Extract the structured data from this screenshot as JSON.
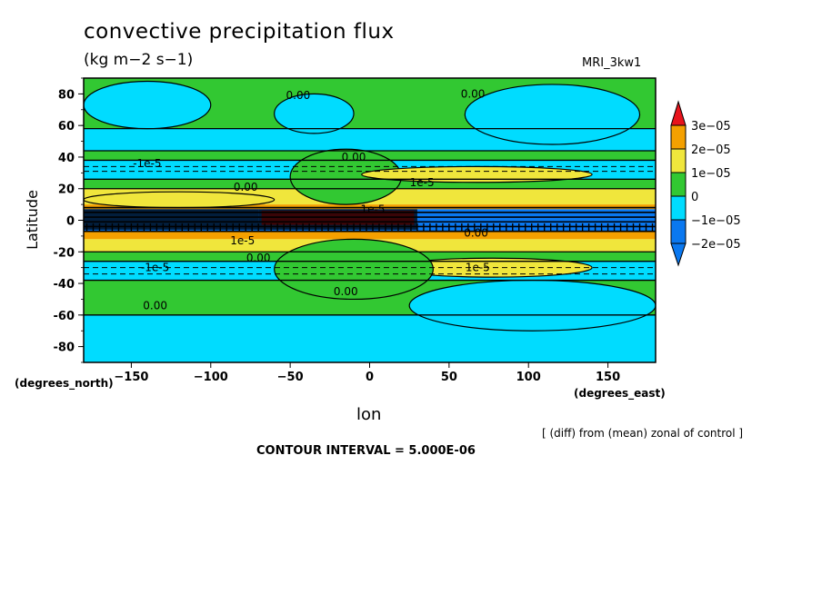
{
  "chart_data": {
    "type": "heatmap",
    "title": "convective precipitation flux",
    "units": "(kg m−2 s−1)",
    "model": "MRI_3kw1",
    "xlabel": "lon",
    "ylabel": "Latitude",
    "x_axis_note": "(degrees_east)",
    "y_axis_note": "(degrees_north)",
    "xlim": [
      -180,
      180
    ],
    "ylim": [
      -90,
      90
    ],
    "xticks": [
      -150,
      -100,
      -50,
      0,
      50,
      100,
      150
    ],
    "yticks": [
      80,
      60,
      40,
      20,
      0,
      -20,
      -40,
      -60,
      -80
    ],
    "description_note": "[ (diff) from (mean) zonal of control ]",
    "contour_interval": "CONTOUR INTERVAL = 5.000E-06",
    "colorbar": {
      "labels": [
        "3e−05",
        "2e−05",
        "1e−05",
        "0",
        "−1e−05",
        "−2e−05"
      ],
      "colors": {
        "red": "#e8141c",
        "orange": "#f4a000",
        "yellow": "#f0e63c",
        "green": "#32c832",
        "cyan": "#00dcff",
        "blue": "#0a78f0",
        "black": "#000000"
      }
    },
    "lat_bands": [
      {
        "lat_from": 90,
        "lat_to": 58,
        "value_class": "green"
      },
      {
        "lat_from": 58,
        "lat_to": 44,
        "value_class": "cyan"
      },
      {
        "lat_from": 44,
        "lat_to": 38,
        "value_class": "green"
      },
      {
        "lat_from": 38,
        "lat_to": 26,
        "value_class": "cyan"
      },
      {
        "lat_from": 26,
        "lat_to": 20,
        "value_class": "green"
      },
      {
        "lat_from": 20,
        "lat_to": 10,
        "value_class": "yellow"
      },
      {
        "lat_from": 10,
        "lat_to": 7,
        "value_class": "orange"
      },
      {
        "lat_from": 7,
        "lat_to": -7,
        "value_class": "blue"
      },
      {
        "lat_from": -7,
        "lat_to": -12,
        "value_class": "orange"
      },
      {
        "lat_from": -12,
        "lat_to": -20,
        "value_class": "yellow"
      },
      {
        "lat_from": -20,
        "lat_to": -26,
        "value_class": "green"
      },
      {
        "lat_from": -26,
        "lat_to": -38,
        "value_class": "cyan"
      },
      {
        "lat_from": -38,
        "lat_to": -60,
        "value_class": "green"
      },
      {
        "lat_from": -60,
        "lat_to": -90,
        "value_class": "cyan"
      }
    ],
    "regions": [
      {
        "name": "north-cyan-left",
        "value_class": "cyan",
        "lon": [
          -180,
          -100
        ],
        "lat": [
          88,
          58
        ]
      },
      {
        "name": "north-cyan-mid",
        "value_class": "cyan",
        "lon": [
          -60,
          -10
        ],
        "lat": [
          80,
          55
        ]
      },
      {
        "name": "north-cyan-right",
        "value_class": "cyan",
        "lon": [
          60,
          170
        ],
        "lat": [
          86,
          48
        ]
      },
      {
        "name": "central-green-north",
        "value_class": "green",
        "lon": [
          -50,
          20
        ],
        "lat": [
          45,
          10
        ]
      },
      {
        "name": "ne-yellow-band",
        "value_class": "yellow",
        "lon": [
          -5,
          140
        ],
        "lat": [
          34,
          24
        ]
      },
      {
        "name": "nw-yellow-band",
        "value_class": "yellow",
        "lon": [
          -180,
          -60
        ],
        "lat": [
          18,
          8
        ]
      },
      {
        "name": "equatorial-black-west",
        "value_class": "black",
        "lon": [
          -180,
          -70
        ],
        "lat": [
          7,
          -6
        ]
      },
      {
        "name": "equatorial-red",
        "value_class": "red",
        "lon": [
          -68,
          28
        ],
        "lat": [
          6,
          -3
        ]
      },
      {
        "name": "equatorial-black-mid",
        "value_class": "black",
        "lon": [
          -70,
          30
        ],
        "lat": [
          7,
          -6
        ]
      },
      {
        "name": "se-yellow-band",
        "value_class": "yellow",
        "lon": [
          15,
          140
        ],
        "lat": [
          -24,
          -36
        ]
      },
      {
        "name": "central-green-south",
        "value_class": "green",
        "lon": [
          -60,
          40
        ],
        "lat": [
          -12,
          -50
        ]
      },
      {
        "name": "south-cyan-right",
        "value_class": "cyan",
        "lon": [
          25,
          180
        ],
        "lat": [
          -38,
          -70
        ]
      }
    ],
    "contour_labels": [
      {
        "text": "0.00",
        "lon": -45,
        "lat": 79
      },
      {
        "text": "0.00",
        "lon": 65,
        "lat": 80
      },
      {
        "text": "0.00",
        "lon": -10,
        "lat": 40
      },
      {
        "text": "0.00",
        "lon": -78,
        "lat": 21
      },
      {
        "text": "0.00",
        "lon": -70,
        "lat": -24
      },
      {
        "text": "0.00",
        "lon": -15,
        "lat": -45
      },
      {
        "text": "0.00",
        "lon": -135,
        "lat": -54
      },
      {
        "text": "0.00",
        "lon": 67,
        "lat": -8
      },
      {
        "text": "-1e-5",
        "lon": -140,
        "lat": 36
      },
      {
        "text": "-1e-5",
        "lon": -135,
        "lat": -30
      },
      {
        "text": "1e-5",
        "lon": 33,
        "lat": 24
      },
      {
        "text": "1e-5",
        "lon": 68,
        "lat": -30
      },
      {
        "text": "1e-5",
        "lon": 2,
        "lat": 7
      },
      {
        "text": "1e-5",
        "lon": -80,
        "lat": -13
      }
    ]
  }
}
